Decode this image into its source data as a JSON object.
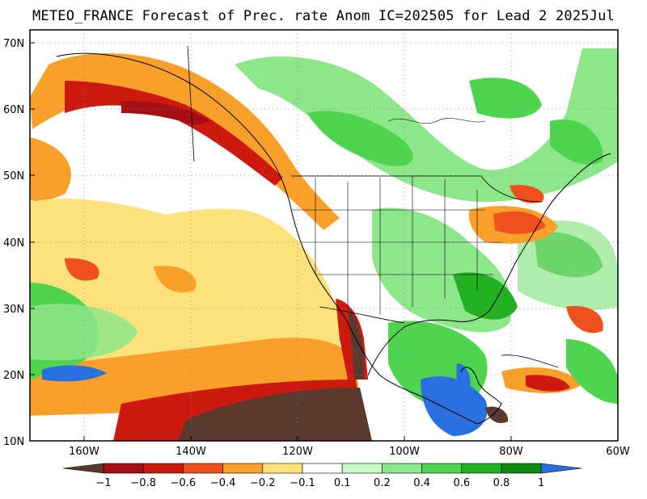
{
  "title": "METEO_FRANCE Forecast of Prec. rate Anom IC=202505 for Lead 2 2025Jul",
  "map": {
    "lon_range": [
      -170,
      -60
    ],
    "lat_range": [
      10,
      72
    ],
    "lat_ticks": [
      "70N",
      "60N",
      "50N",
      "40N",
      "30N",
      "20N",
      "10N"
    ],
    "lon_ticks": [
      "160W",
      "140W",
      "120W",
      "100W",
      "80W",
      "60W"
    ]
  },
  "colorbar": {
    "labels": [
      "−1",
      "−0.8",
      "−0.6",
      "−0.4",
      "−0.2",
      "−0.1",
      "0.1",
      "0.2",
      "0.4",
      "0.6",
      "0.8",
      "1"
    ],
    "colors": [
      "#5a3a2e",
      "#a50f15",
      "#cc1a10",
      "#f0501e",
      "#f9a02a",
      "#fde17a",
      "#ffffff",
      "#c7fac4",
      "#8ee68a",
      "#4fd44f",
      "#23b023",
      "#0f8a0f",
      "#2a6fe0"
    ]
  }
}
